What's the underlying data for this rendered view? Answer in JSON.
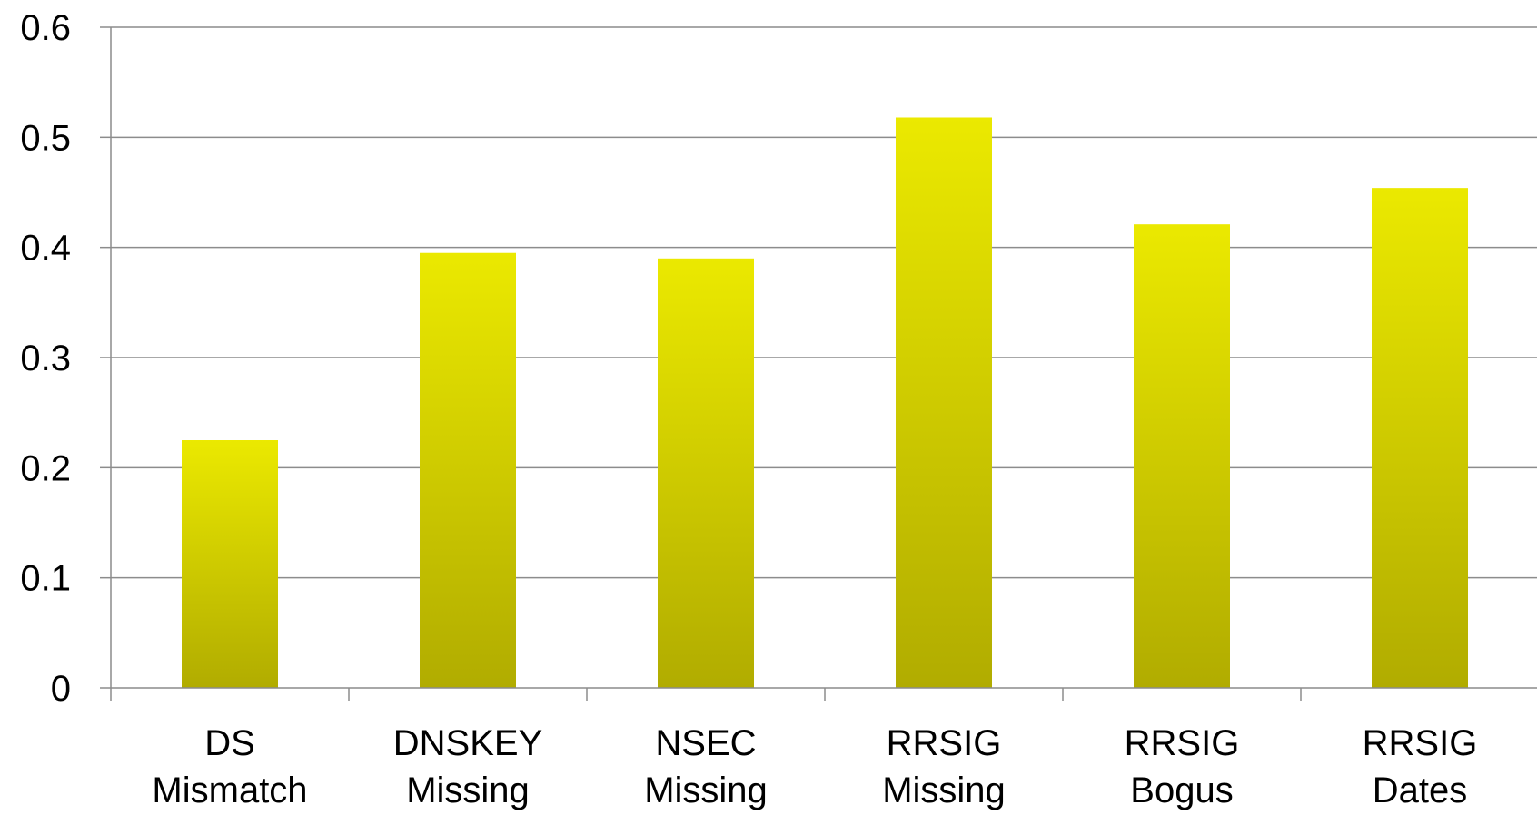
{
  "chart_data": {
    "type": "bar",
    "categories": [
      [
        "DS",
        "Mismatch"
      ],
      [
        "DNSKEY",
        "Missing"
      ],
      [
        "NSEC",
        "Missing"
      ],
      [
        "RRSIG",
        "Missing"
      ],
      [
        "RRSIG",
        "Bogus"
      ],
      [
        "RRSIG",
        "Dates"
      ]
    ],
    "values": [
      0.225,
      0.395,
      0.39,
      0.518,
      0.421,
      0.454
    ],
    "title": "",
    "xlabel": "",
    "ylabel": "",
    "ylim": [
      0,
      0.6
    ],
    "yticks": [
      "0",
      "0.1",
      "0.2",
      "0.3",
      "0.4",
      "0.5",
      "0.6"
    ],
    "grid": true,
    "legend": "none",
    "colors": {
      "bar_top": "#ebe900",
      "bar_bottom": "#b1ac00",
      "grid": "#8c8c8c"
    }
  }
}
